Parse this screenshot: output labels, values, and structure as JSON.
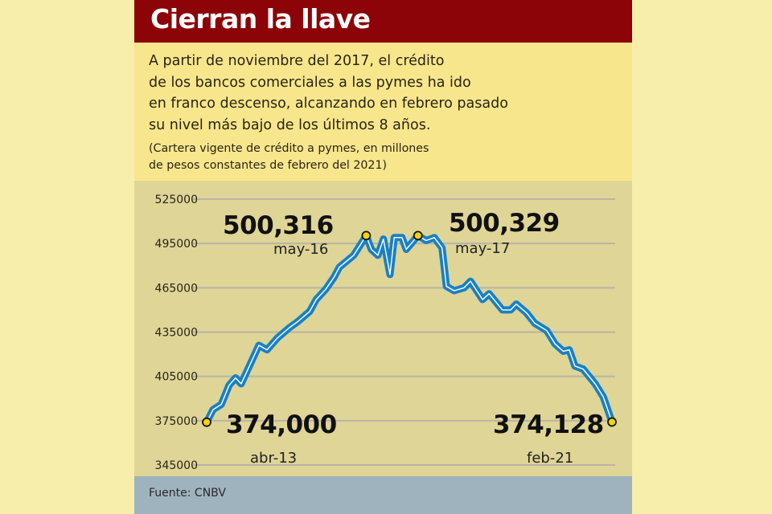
{
  "header": {
    "title": "Cierran la llave"
  },
  "description": {
    "lines": [
      "A partir de noviembre del 2017, el crédito",
      "de los bancos comerciales a las pymes ha ido",
      "en franco descenso, alcanzando en febrero pasado",
      "su nivel más bajo de los últimos 8 años."
    ],
    "note_lines": [
      "(Cartera vigente de crédito a pymes, en millones",
      "de pesos constantes de febrero del 2021)"
    ]
  },
  "footer": {
    "source": "Fuente: CNBV"
  },
  "colors": {
    "title_bar": "#8c0408",
    "line": "#1a80c4",
    "highlight": "#f5d400",
    "background": "#ded597"
  },
  "chart_data": {
    "type": "line",
    "title": "Cierran la llave",
    "xlabel": "",
    "ylabel": "Cartera vigente de crédito a pymes (millones de pesos constantes de febrero del 2021)",
    "x_unit": "months since abr-13",
    "xlim": [
      0,
      94
    ],
    "ylim": [
      345000,
      525000
    ],
    "y_ticks": [
      "525000",
      "495000",
      "465000",
      "435000",
      "405000",
      "375000",
      "345000"
    ],
    "grid": true,
    "series": [
      {
        "name": "Cartera vigente",
        "points": [
          [
            0,
            374000
          ],
          [
            1.5,
            382500
          ],
          [
            3.4,
            386000
          ],
          [
            5.2,
            399000
          ],
          [
            6.7,
            404000
          ],
          [
            8,
            400000
          ],
          [
            9.9,
            412000
          ],
          [
            12.1,
            426000
          ],
          [
            14,
            423000
          ],
          [
            16.4,
            431000
          ],
          [
            19.2,
            438000
          ],
          [
            21.1,
            442000
          ],
          [
            23.9,
            449000
          ],
          [
            25.4,
            457000
          ],
          [
            27.6,
            464000
          ],
          [
            29.5,
            472000
          ],
          [
            30.8,
            479000
          ],
          [
            34.1,
            487000
          ],
          [
            37,
            500316
          ],
          [
            38.2,
            491000
          ],
          [
            39.7,
            487000
          ],
          [
            41,
            498000
          ],
          [
            42.5,
            474000
          ],
          [
            43.5,
            499000
          ],
          [
            45.3,
            499000
          ],
          [
            46.3,
            491000
          ],
          [
            49,
            500329
          ],
          [
            50.9,
            497000
          ],
          [
            52.8,
            499000
          ],
          [
            54.6,
            492000
          ],
          [
            55.6,
            466000
          ],
          [
            57.4,
            463000
          ],
          [
            59.7,
            465000
          ],
          [
            61.2,
            469500
          ],
          [
            64,
            457000
          ],
          [
            65.5,
            461000
          ],
          [
            68.6,
            450000
          ],
          [
            70.5,
            450000
          ],
          [
            71.8,
            454000
          ],
          [
            74.2,
            448000
          ],
          [
            76.1,
            441000
          ],
          [
            78.9,
            436000
          ],
          [
            80.8,
            427000
          ],
          [
            82.7,
            422000
          ],
          [
            84.1,
            423000
          ],
          [
            85.4,
            412000
          ],
          [
            87.3,
            410000
          ],
          [
            90.1,
            400000
          ],
          [
            92,
            391000
          ],
          [
            94,
            374128
          ]
        ]
      }
    ],
    "annotations": [
      {
        "x": 0,
        "y": 374000,
        "value_label": "374,000",
        "date_label": "abr-13"
      },
      {
        "x": 37,
        "y": 500316,
        "value_label": "500,316",
        "date_label": "may-16"
      },
      {
        "x": 49,
        "y": 500329,
        "value_label": "500,329",
        "date_label": "may-17"
      },
      {
        "x": 94,
        "y": 374128,
        "value_label": "374,128",
        "date_label": "feb-21"
      }
    ]
  }
}
